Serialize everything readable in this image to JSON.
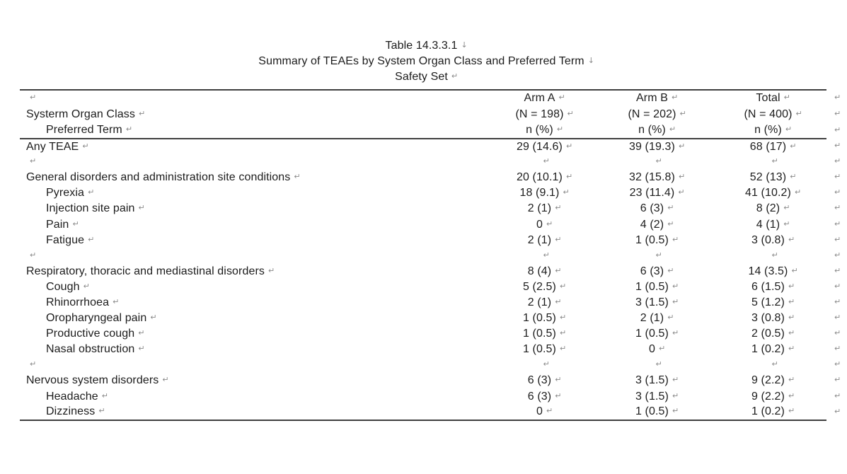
{
  "title": {
    "line1": "Table 14.3.3.1",
    "line2": "Summary of TEAEs by System Organ Class and Preferred Term",
    "line3": "Safety Set"
  },
  "marks": {
    "line_break": "↓",
    "cell_end": "↵"
  },
  "colors": {
    "text": "#1c1c1c",
    "mark": "#8a8a8a",
    "border": "#3f3f3f",
    "page_background": "#ffffff"
  },
  "table": {
    "header": {
      "col_label_line1": "",
      "col_label_line2": "Systerm Organ Class",
      "col_label_line3": "Preferred Term",
      "columns": [
        {
          "name": "Arm A",
          "n": "(N = 198)",
          "stat": "n (%)"
        },
        {
          "name": "Arm B",
          "n": "(N = 202)",
          "stat": "n (%)"
        },
        {
          "name": "Total",
          "n": "(N = 400)",
          "stat": "n (%)"
        }
      ]
    },
    "rows": [
      {
        "label": "Any TEAE",
        "indent": false,
        "values": [
          "29 (14.6)",
          "39 (19.3)",
          "68 (17)"
        ]
      },
      {
        "label": "",
        "indent": false,
        "values": [
          "",
          "",
          ""
        ]
      },
      {
        "label": "General disorders and administration site conditions",
        "indent": false,
        "values": [
          "20 (10.1)",
          "32 (15.8)",
          "52 (13)"
        ]
      },
      {
        "label": "Pyrexia",
        "indent": true,
        "values": [
          "18 (9.1)",
          "23 (11.4)",
          "41 (10.2)"
        ]
      },
      {
        "label": "Injection site pain",
        "indent": true,
        "values": [
          "2 (1)",
          "6 (3)",
          "8 (2)"
        ]
      },
      {
        "label": "Pain",
        "indent": true,
        "values": [
          "0",
          "4 (2)",
          "4 (1)"
        ]
      },
      {
        "label": "Fatigue",
        "indent": true,
        "values": [
          "2 (1)",
          "1 (0.5)",
          "3 (0.8)"
        ]
      },
      {
        "label": "",
        "indent": false,
        "values": [
          "",
          "",
          ""
        ]
      },
      {
        "label": "Respiratory, thoracic and mediastinal disorders",
        "indent": false,
        "values": [
          "8 (4)",
          "6 (3)",
          "14 (3.5)"
        ]
      },
      {
        "label": "Cough",
        "indent": true,
        "values": [
          "5 (2.5)",
          "1 (0.5)",
          "6 (1.5)"
        ]
      },
      {
        "label": "Rhinorrhoea",
        "indent": true,
        "values": [
          "2 (1)",
          "3 (1.5)",
          "5 (1.2)"
        ]
      },
      {
        "label": "Oropharyngeal pain",
        "indent": true,
        "values": [
          "1 (0.5)",
          "2 (1)",
          "3 (0.8)"
        ]
      },
      {
        "label": "Productive cough",
        "indent": true,
        "values": [
          "1 (0.5)",
          "1 (0.5)",
          "2 (0.5)"
        ]
      },
      {
        "label": "Nasal obstruction",
        "indent": true,
        "values": [
          "1 (0.5)",
          "0",
          "1 (0.2)"
        ]
      },
      {
        "label": "",
        "indent": false,
        "values": [
          "",
          "",
          ""
        ]
      },
      {
        "label": "Nervous system disorders",
        "indent": false,
        "values": [
          "6 (3)",
          "3 (1.5)",
          "9 (2.2)"
        ]
      },
      {
        "label": "Headache",
        "indent": true,
        "values": [
          "6 (3)",
          "3 (1.5)",
          "9 (2.2)"
        ]
      },
      {
        "label": "Dizziness",
        "indent": true,
        "values": [
          "0",
          "1 (0.5)",
          "1 (0.2)"
        ]
      }
    ]
  }
}
